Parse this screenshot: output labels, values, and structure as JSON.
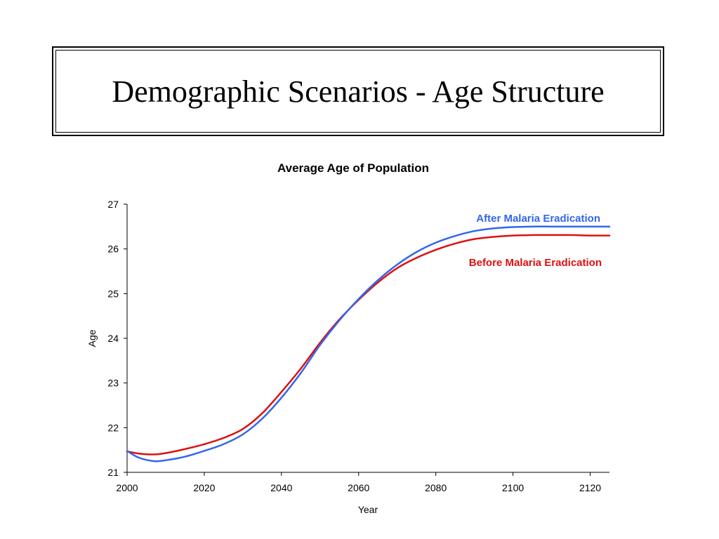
{
  "slide": {
    "title": "Demographic Scenarios - Age Structure"
  },
  "chart_data": {
    "type": "line",
    "title": "Average Age of Population",
    "xlabel": "Year",
    "ylabel": "Age",
    "xlim": [
      2000,
      2125
    ],
    "ylim": [
      21,
      27
    ],
    "x_ticks": [
      2000,
      2020,
      2040,
      2060,
      2080,
      2100,
      2120
    ],
    "y_ticks": [
      21,
      22,
      23,
      24,
      25,
      26,
      27
    ],
    "grid": false,
    "legend": "inline labels near line ends (top-right)",
    "x": [
      2000,
      2003,
      2007,
      2010,
      2015,
      2020,
      2025,
      2030,
      2035,
      2040,
      2045,
      2050,
      2055,
      2060,
      2065,
      2070,
      2075,
      2080,
      2085,
      2090,
      2095,
      2100,
      2105,
      2110,
      2115,
      2120,
      2125
    ],
    "series": [
      {
        "name": "After Malaria Eradication",
        "color": "#3366ee",
        "values": [
          21.48,
          21.33,
          21.25,
          21.27,
          21.35,
          21.48,
          21.63,
          21.85,
          22.2,
          22.67,
          23.22,
          23.85,
          24.4,
          24.88,
          25.3,
          25.65,
          25.93,
          26.14,
          26.29,
          26.4,
          26.46,
          26.49,
          26.5,
          26.5,
          26.5,
          26.5,
          26.5
        ]
      },
      {
        "name": "Before Malaria Eradication",
        "color": "#dd1111",
        "values": [
          21.47,
          21.42,
          21.4,
          21.43,
          21.52,
          21.63,
          21.77,
          21.97,
          22.32,
          22.8,
          23.32,
          23.9,
          24.42,
          24.86,
          25.25,
          25.57,
          25.8,
          25.98,
          26.12,
          26.22,
          26.27,
          26.3,
          26.31,
          26.31,
          26.31,
          26.3,
          26.3
        ]
      }
    ]
  }
}
